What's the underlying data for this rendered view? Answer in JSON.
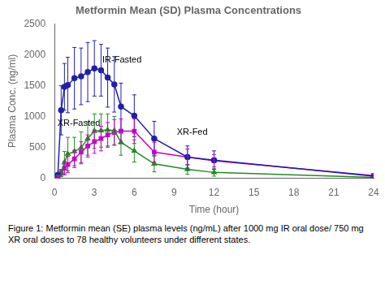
{
  "chart_data": {
    "type": "line",
    "title": "Metformin Mean (SD) Plasma Concentrations",
    "x_label": "Time (hour)",
    "y_label": "Plasma Conc. (ng/ml)",
    "caption": "Figure 1: Metformin mean (SE) plasma levels (ng/mL) after 1000 mg IR oral dose/ 750 mg XR oral doses to 78 healthy volunteers under different states.",
    "x": [
      0.25,
      0.5,
      0.75,
      1.0,
      1.5,
      2.0,
      2.5,
      3.0,
      3.5,
      4.0,
      4.5,
      5.0,
      6.0,
      7.5,
      10.0,
      12.0,
      24.0
    ],
    "series": [
      {
        "name": "IR-Fasted",
        "color": "#2020aa",
        "marker": "circle",
        "line_style": "solid",
        "values": [
          50,
          1100,
          1480,
          1510,
          1620,
          1650,
          1720,
          1780,
          1750,
          1630,
          1520,
          1160,
          1010,
          640,
          340,
          290,
          30
        ],
        "errors": [
          20,
          400,
          380,
          450,
          500,
          460,
          480,
          450,
          420,
          480,
          450,
          380,
          340,
          280,
          180,
          150,
          20
        ]
      },
      {
        "name": "XR-Fasted",
        "color": "#228B22",
        "marker": "triangle",
        "line_style": "solid",
        "values": [
          30,
          80,
          250,
          390,
          430,
          490,
          640,
          760,
          770,
          780,
          770,
          580,
          440,
          230,
          140,
          90,
          10
        ],
        "errors": [
          15,
          60,
          180,
          270,
          230,
          260,
          270,
          280,
          270,
          260,
          230,
          210,
          180,
          130,
          80,
          60,
          10
        ]
      },
      {
        "name": "XR-Fed",
        "color": "#cc00cc",
        "marker": "square",
        "line_style": "solid",
        "values": [
          20,
          80,
          160,
          220,
          310,
          420,
          520,
          590,
          640,
          700,
          740,
          760,
          760,
          420,
          340,
          280,
          40
        ],
        "errors": [
          10,
          50,
          110,
          130,
          140,
          170,
          180,
          190,
          200,
          200,
          210,
          200,
          200,
          160,
          130,
          100,
          20
        ]
      }
    ],
    "annotations": [
      {
        "text": "IR-Fasted",
        "x": 3.6,
        "y": 1870
      },
      {
        "text": "XR-Fasted",
        "x": 0.22,
        "y": 840
      },
      {
        "text": "XR-Fed",
        "x": 9.2,
        "y": 700
      }
    ],
    "xlim": [
      0,
      24
    ],
    "xticks": [
      0,
      3,
      6,
      9,
      12,
      15,
      18,
      21,
      24
    ],
    "ylim": [
      0,
      2500
    ],
    "yticks": [
      0,
      500,
      1000,
      1500,
      2000,
      2500
    ],
    "grid": false
  }
}
